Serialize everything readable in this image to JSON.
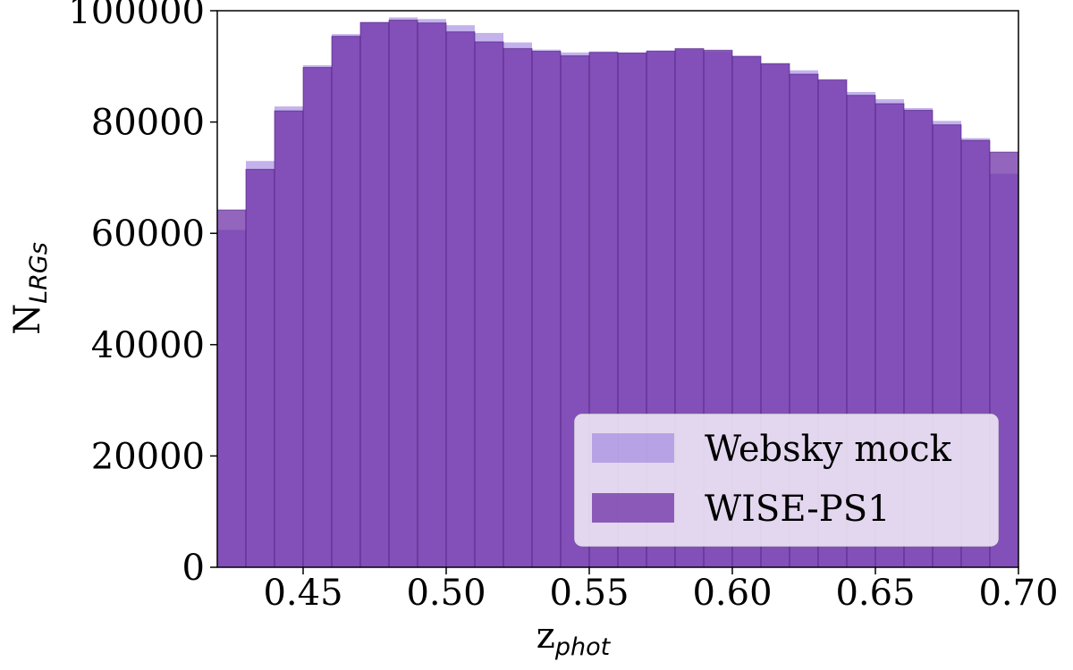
{
  "chart_data": {
    "type": "histogram",
    "title": "",
    "xlabel": {
      "main": "z",
      "sub": "phot"
    },
    "ylabel": {
      "main": "N",
      "sub": "LRGs"
    },
    "xlim": [
      0.42,
      0.7
    ],
    "ylim": [
      0,
      100000
    ],
    "xticks": [
      "0.45",
      "0.50",
      "0.55",
      "0.60",
      "0.65",
      "0.70"
    ],
    "yticks": [
      "0",
      "20000",
      "40000",
      "60000",
      "80000",
      "100000"
    ],
    "bin_edges": [
      0.42,
      0.43,
      0.44,
      0.45,
      0.46,
      0.47,
      0.48,
      0.49,
      0.5,
      0.51,
      0.52,
      0.53,
      0.54,
      0.55,
      0.56,
      0.57,
      0.58,
      0.59,
      0.6,
      0.61,
      0.62,
      0.63,
      0.64,
      0.65,
      0.66,
      0.67,
      0.68,
      0.69,
      0.7
    ],
    "legend_position": "lower-right",
    "series": [
      {
        "name": "Websky mock",
        "color": "#9b7fe0",
        "opacity": 0.6,
        "values": [
          60600,
          73000,
          82800,
          90200,
          95800,
          97900,
          98800,
          98500,
          97400,
          96000,
          94300,
          93000,
          92500,
          92700,
          92500,
          92900,
          93100,
          92700,
          91900,
          90500,
          89300,
          87500,
          85400,
          84100,
          82500,
          80200,
          77100,
          70700
        ]
      },
      {
        "name": "WISE-PS1",
        "color": "#6a2aa3",
        "opacity": 0.72,
        "values": [
          64200,
          71500,
          82000,
          89800,
          95400,
          97900,
          98300,
          97800,
          96200,
          94400,
          93200,
          92700,
          91900,
          92500,
          92400,
          92700,
          93200,
          92900,
          91800,
          90500,
          88600,
          87600,
          84800,
          83300,
          82100,
          79500,
          76700,
          74600
        ]
      }
    ]
  }
}
